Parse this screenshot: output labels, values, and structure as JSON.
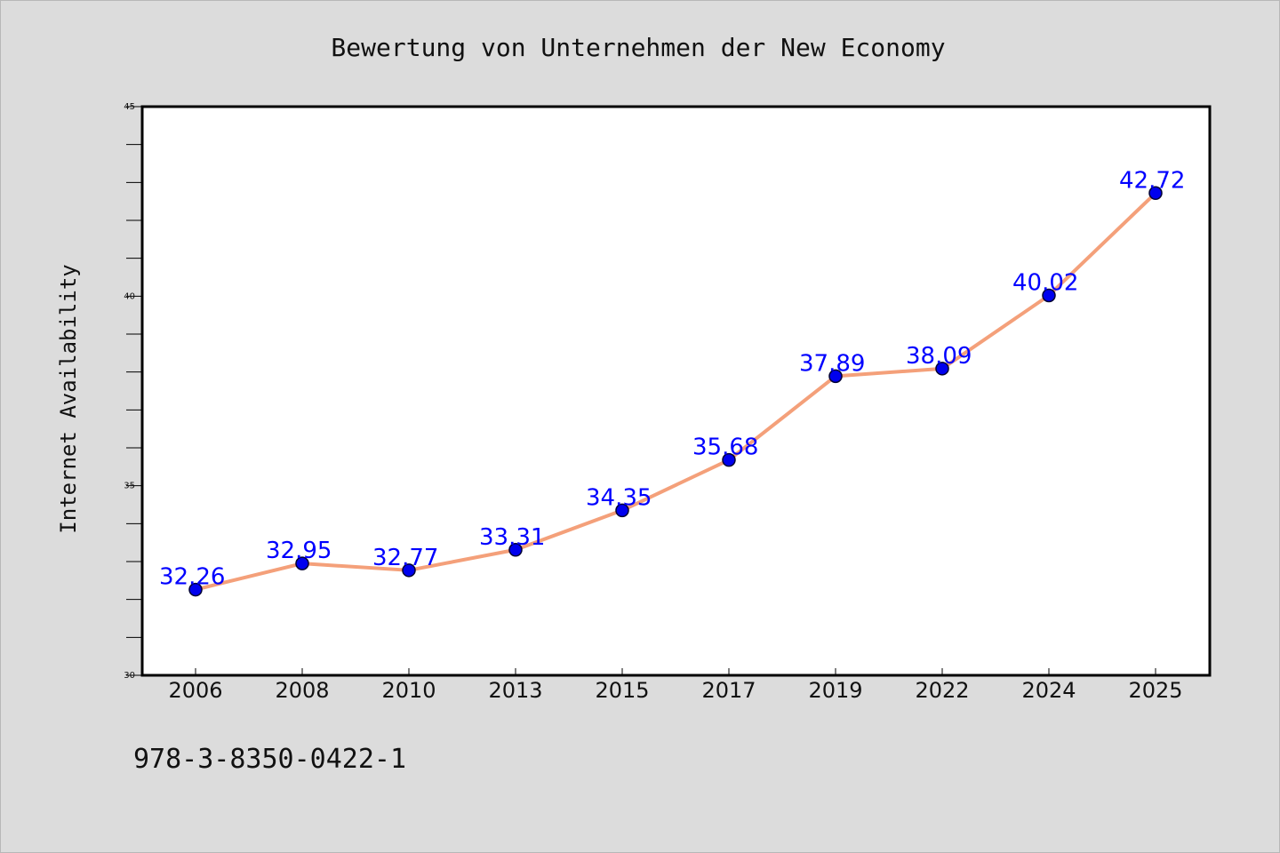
{
  "chart_data": {
    "type": "line",
    "title": "Bewertung von Unternehmen der New Economy",
    "xlabel": "",
    "ylabel": "Internet Availability",
    "categories": [
      "2006",
      "2008",
      "2010",
      "2013",
      "2015",
      "2017",
      "2019",
      "2022",
      "2024",
      "2025"
    ],
    "series": [
      {
        "values": [
          32.26,
          32.95,
          32.77,
          33.31,
          34.35,
          35.68,
          37.89,
          38.09,
          40.02,
          42.72
        ],
        "labels": [
          "32.26",
          "32.95",
          "32.77",
          "33.31",
          "34.35",
          "35.68",
          "37.89",
          "38.09",
          "40.02",
          "42.72"
        ]
      }
    ],
    "ylim": [
      30,
      45
    ],
    "yticks": [
      30,
      35,
      40,
      45
    ],
    "yminor_step": 1,
    "grid": false,
    "legend": "none",
    "colors": {
      "line": "#f4a07a",
      "marker": "#0000ee",
      "marker_edge": "#000033",
      "data_label": "#0000ff",
      "plot_background": "#ffffff",
      "page_background": "#dcdcdc"
    }
  },
  "footer": {
    "isbn": "978-3-8350-0422-1"
  }
}
